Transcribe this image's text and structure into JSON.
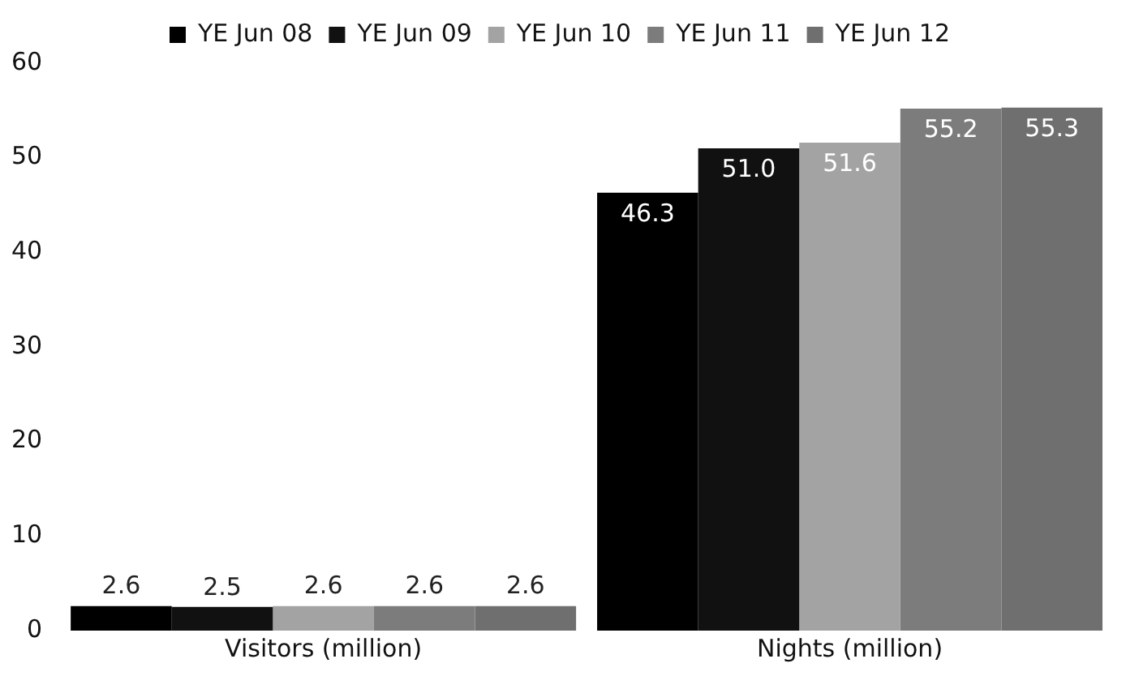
{
  "chart_data": {
    "type": "bar",
    "categories": [
      "Visitors (million)",
      "Nights (million)"
    ],
    "series": [
      {
        "name": "YE Jun 08",
        "color": "#000000",
        "values": [
          2.6,
          46.3
        ],
        "value_labels": [
          "2.6",
          "46.3"
        ]
      },
      {
        "name": "YE Jun 09",
        "color": "#111111",
        "values": [
          2.5,
          51.0
        ],
        "value_labels": [
          "2.5",
          "51.0"
        ]
      },
      {
        "name": "YE Jun 10",
        "color": "#a3a3a3",
        "values": [
          2.6,
          51.6
        ],
        "value_labels": [
          "2.6",
          "51.6"
        ]
      },
      {
        "name": "YE Jun 11",
        "color": "#7c7c7c",
        "values": [
          2.6,
          55.2
        ],
        "value_labels": [
          "2.6",
          "55.2"
        ]
      },
      {
        "name": "YE Jun 12",
        "color": "#6f6f6f",
        "values": [
          2.6,
          55.3
        ],
        "value_labels": [
          "2.6",
          "55.3"
        ]
      }
    ],
    "ylim": [
      0,
      60
    ],
    "yticks": [
      0,
      10,
      20,
      30,
      40,
      50,
      60
    ],
    "legend": "top",
    "grid": false
  }
}
